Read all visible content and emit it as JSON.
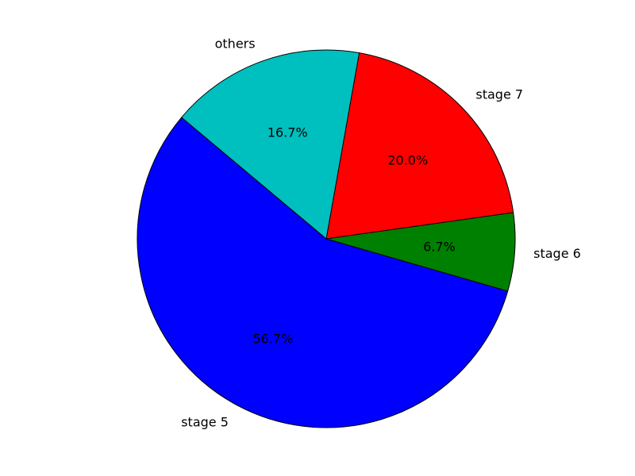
{
  "chart_data": {
    "type": "pie",
    "categories": [
      "stage 5",
      "stage 6",
      "stage 7",
      "others"
    ],
    "values": [
      56.7,
      6.7,
      20.0,
      16.7
    ],
    "percent_labels": [
      "56.7%",
      "6.7%",
      "20.0%",
      "16.7%"
    ],
    "colors": [
      "#0000ff",
      "#008000",
      "#ff0000",
      "#00bfbf"
    ],
    "edge_color": "#000000",
    "start_angle_deg": 140,
    "direction": "counterclockwise",
    "legend": "none"
  }
}
